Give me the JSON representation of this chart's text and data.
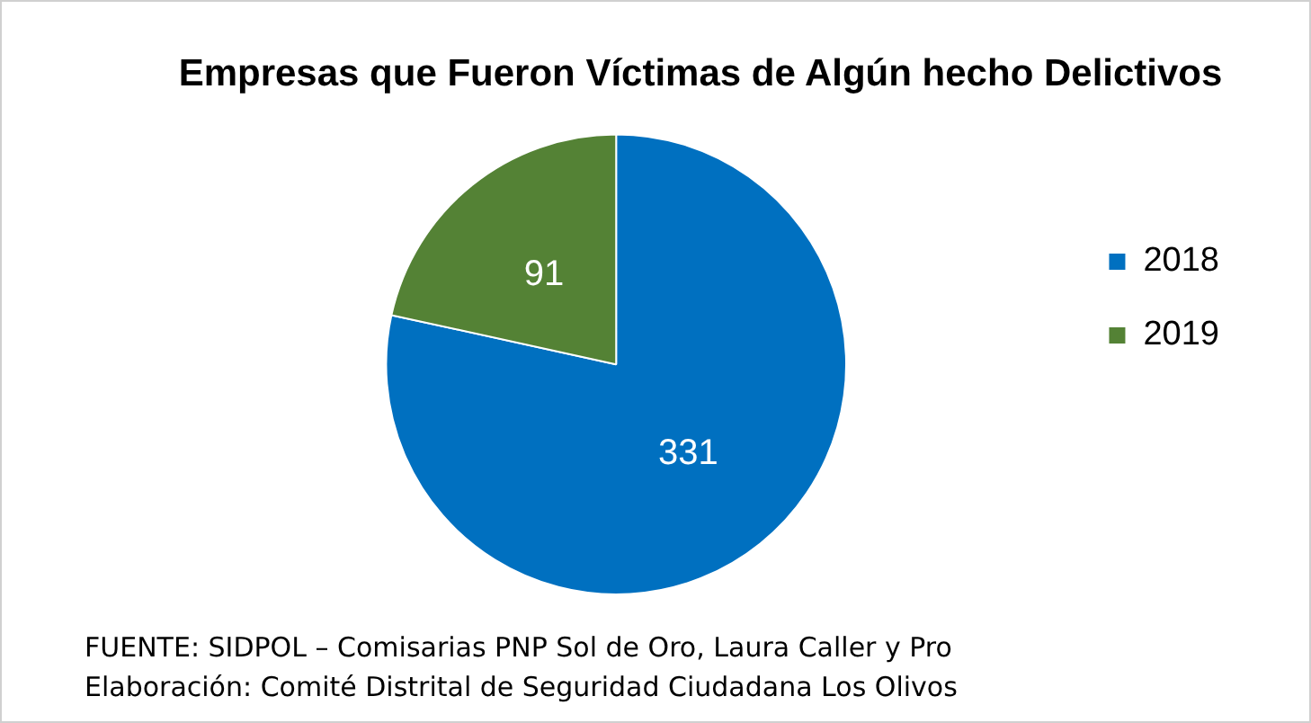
{
  "chart_data": {
    "type": "pie",
    "title": "Empresas que Fueron Víctimas de Algún hecho Delictivos",
    "categories": [
      "2018",
      "2019"
    ],
    "values": [
      331,
      91
    ],
    "colors": [
      "#0070c0",
      "#548235"
    ],
    "data_labels": true,
    "legend": "right",
    "annotations": [
      "FUENTE: SIDPOL – Comisarias PNP Sol de Oro, Laura Caller y Pro",
      "Elaboración: Comité Distrital de Seguridad Ciudadana Los Olivos"
    ]
  }
}
